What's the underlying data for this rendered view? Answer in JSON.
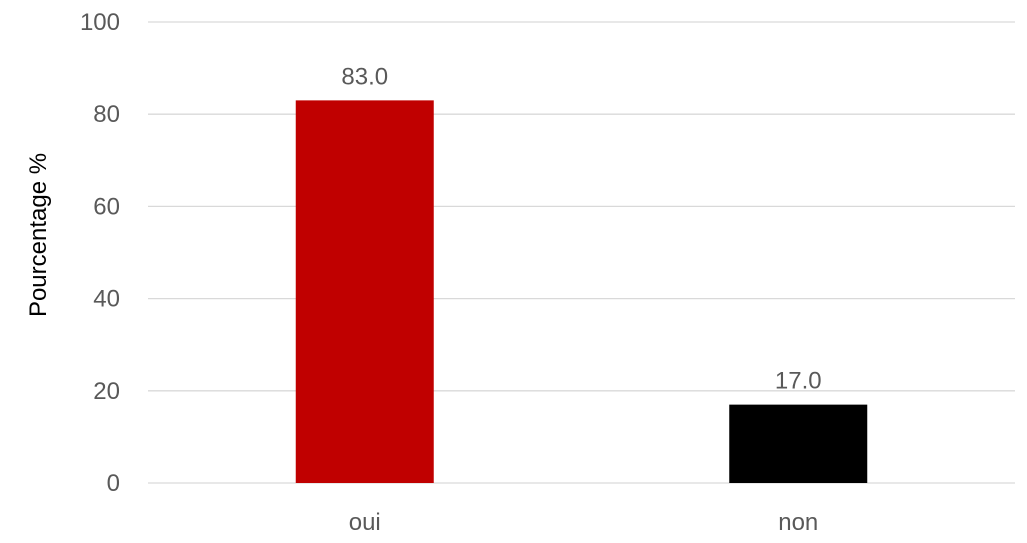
{
  "chart_data": {
    "type": "bar",
    "title": "",
    "xlabel": "",
    "ylabel": "Pourcentage %",
    "categories": [
      "oui",
      "non"
    ],
    "values": [
      83.0,
      17.0
    ],
    "data_labels": [
      "83.0",
      "17.0"
    ],
    "bar_colors": [
      "#c00000",
      "#000000"
    ],
    "ylim": [
      0,
      100
    ],
    "yticks": [
      0,
      20,
      40,
      60,
      80,
      100
    ],
    "grid": true,
    "legend": "none"
  }
}
